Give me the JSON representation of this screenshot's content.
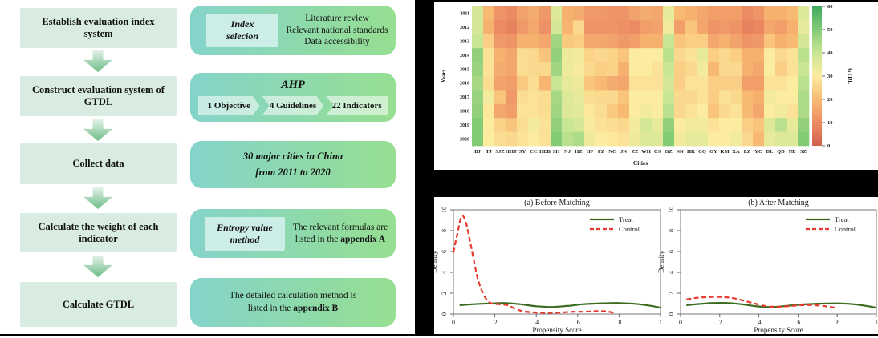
{
  "colors": {
    "flow_left_bg": "#d9ece1",
    "flow_right_gradient": [
      "#85d4cb",
      "#96de90"
    ],
    "badge_bg": "#cdeee6",
    "arrow_gradient": [
      "#e2f1e8",
      "#6dbd86"
    ],
    "treat_line": "#3a6b1e",
    "control_line": "#e8392e"
  },
  "flowchart": {
    "steps": [
      {
        "label": "Establish evaluation index system",
        "badge_lines": [
          "Index",
          "selecion"
        ],
        "info_lines": [
          "Literature review",
          "Relevant national standards",
          "Data accessibility"
        ]
      },
      {
        "label": "Construct evaluation system of GTDL",
        "title": "AHP",
        "chevrons": [
          "1 Objective",
          "4 Guidelines",
          "22 Indicators"
        ]
      },
      {
        "label": "Collect data",
        "info_lines": [
          "30 major cities in China",
          "from 2011 to 2020"
        ]
      },
      {
        "label": "Calculate the weight of each indicator",
        "badge_lines": [
          "Entropy value",
          "method"
        ],
        "line1": "The relevant formulas are",
        "line2_prefix": "listed in the ",
        "line2_bold": "appendix A"
      },
      {
        "label": "Calculate GTDL",
        "line1": "The detailed calculation method is",
        "line2_prefix": "listed in the ",
        "line2_bold": "appendix B"
      }
    ]
  },
  "chart_data": [
    {
      "type": "heatmap",
      "xlabel": "Cities",
      "ylabel": "Years",
      "colorbar_label": "GTDL",
      "colorbar_range": [
        0,
        60
      ],
      "colorbar_ticks": [
        0,
        10,
        20,
        30,
        40,
        50,
        60
      ],
      "colormap_stops": [
        [
          0,
          "#d4604e"
        ],
        [
          10,
          "#ec8b63"
        ],
        [
          20,
          "#f8ba72"
        ],
        [
          30,
          "#fceca0"
        ],
        [
          40,
          "#c9e694"
        ],
        [
          50,
          "#84cb76"
        ],
        [
          60,
          "#3fa95e"
        ]
      ],
      "x_categories": [
        "BJ",
        "TJ",
        "SJZ",
        "HHT",
        "SY",
        "CC",
        "HEB",
        "SH",
        "NJ",
        "HZ",
        "HF",
        "FZ",
        "NC",
        "JN",
        "ZZ",
        "WH",
        "CS",
        "GZ",
        "NN",
        "HK",
        "CQ",
        "GY",
        "KM",
        "XA",
        "LZ",
        "YC",
        "DL",
        "QD",
        "NB",
        "SZ"
      ],
      "y_categories": [
        "2011",
        "2012",
        "2013",
        "2014",
        "2015",
        "2016",
        "2017",
        "2018",
        "2019",
        "2020"
      ],
      "values": [
        [
          38,
          20,
          12,
          10,
          15,
          17,
          13,
          36,
          18,
          17,
          13,
          13,
          12,
          12,
          15,
          17,
          16,
          34,
          20,
          18,
          16,
          14,
          14,
          14,
          10,
          12,
          18,
          18,
          20,
          36
        ],
        [
          38,
          18,
          10,
          8,
          13,
          16,
          11,
          38,
          19,
          26,
          12,
          12,
          12,
          11,
          10,
          14,
          15,
          32,
          14,
          22,
          16,
          12,
          13,
          12,
          8,
          9,
          16,
          14,
          18,
          34
        ],
        [
          40,
          24,
          13,
          12,
          18,
          18,
          16,
          46,
          23,
          24,
          16,
          16,
          15,
          13,
          14,
          18,
          18,
          40,
          22,
          24,
          24,
          16,
          18,
          15,
          12,
          13,
          22,
          18,
          20,
          38
        ],
        [
          48,
          28,
          18,
          16,
          27,
          26,
          22,
          48,
          33,
          32,
          25,
          26,
          25,
          22,
          30,
          30,
          30,
          42,
          26,
          28,
          34,
          24,
          26,
          24,
          18,
          18,
          30,
          26,
          28,
          42
        ],
        [
          47,
          28,
          17,
          16,
          27,
          26,
          26,
          46,
          33,
          31,
          26,
          24,
          25,
          18,
          30,
          30,
          28,
          40,
          24,
          26,
          32,
          20,
          26,
          26,
          18,
          16,
          30,
          24,
          28,
          40
        ],
        [
          45,
          27,
          15,
          14,
          23,
          27,
          19,
          40,
          34,
          33,
          22,
          20,
          17,
          16,
          28,
          28,
          28,
          38,
          24,
          28,
          28,
          24,
          24,
          24,
          14,
          14,
          28,
          28,
          30,
          42
        ],
        [
          47,
          32,
          22,
          13,
          27,
          28,
          27,
          45,
          36,
          34,
          27,
          26,
          26,
          22,
          30,
          30,
          30,
          40,
          26,
          26,
          28,
          24,
          28,
          26,
          20,
          18,
          32,
          30,
          30,
          44
        ],
        [
          48,
          29,
          16,
          14,
          28,
          28,
          27,
          46,
          36,
          35,
          29,
          27,
          23,
          20,
          30,
          32,
          30,
          42,
          26,
          28,
          30,
          22,
          26,
          28,
          20,
          16,
          30,
          32,
          28,
          44
        ],
        [
          50,
          30,
          25,
          22,
          27,
          32,
          28,
          48,
          40,
          38,
          31,
          28,
          27,
          26,
          32,
          38,
          34,
          48,
          30,
          32,
          32,
          28,
          30,
          30,
          24,
          22,
          36,
          42,
          34,
          48
        ],
        [
          50,
          30,
          27,
          26,
          28,
          30,
          28,
          50,
          42,
          44,
          33,
          30,
          29,
          28,
          33,
          36,
          36,
          50,
          32,
          34,
          34,
          30,
          30,
          32,
          26,
          20,
          34,
          36,
          36,
          50
        ]
      ]
    },
    {
      "type": "line",
      "title": "(a) Before Matching",
      "xlabel": "Propensity Score",
      "ylabel": "Density",
      "xlim": [
        0,
        1
      ],
      "ylim": [
        0,
        10
      ],
      "xticks": [
        [
          0,
          "0"
        ],
        [
          0.2,
          ".2"
        ],
        [
          0.4,
          ".4"
        ],
        [
          0.6,
          ".6"
        ],
        [
          0.8,
          ".8"
        ],
        [
          1,
          "1"
        ]
      ],
      "yticks": [
        0,
        2,
        4,
        6,
        8,
        10
      ],
      "legend": [
        "Treat",
        "Control"
      ],
      "series": [
        {
          "name": "Treat",
          "style": "solid",
          "color": "#3a6b1e",
          "points": [
            [
              0.03,
              0.85
            ],
            [
              0.1,
              0.95
            ],
            [
              0.18,
              1.02
            ],
            [
              0.25,
              1.05
            ],
            [
              0.32,
              0.95
            ],
            [
              0.4,
              0.75
            ],
            [
              0.47,
              0.68
            ],
            [
              0.55,
              0.78
            ],
            [
              0.63,
              0.95
            ],
            [
              0.72,
              1.03
            ],
            [
              0.8,
              1.05
            ],
            [
              0.88,
              0.98
            ],
            [
              0.95,
              0.8
            ],
            [
              1.0,
              0.6
            ]
          ]
        },
        {
          "name": "Control",
          "style": "dashed",
          "color": "#e8392e",
          "points": [
            [
              0.0,
              5.9
            ],
            [
              0.02,
              7.8
            ],
            [
              0.04,
              9.4
            ],
            [
              0.06,
              8.8
            ],
            [
              0.08,
              7.0
            ],
            [
              0.1,
              5.0
            ],
            [
              0.12,
              3.2
            ],
            [
              0.15,
              1.7
            ],
            [
              0.18,
              1.05
            ],
            [
              0.22,
              0.95
            ],
            [
              0.26,
              0.85
            ],
            [
              0.3,
              0.5
            ],
            [
              0.34,
              0.25
            ],
            [
              0.4,
              0.15
            ],
            [
              0.46,
              0.12
            ],
            [
              0.52,
              0.15
            ],
            [
              0.58,
              0.22
            ],
            [
              0.64,
              0.22
            ],
            [
              0.7,
              0.28
            ],
            [
              0.74,
              0.25
            ],
            [
              0.78,
              0.1
            ]
          ]
        }
      ]
    },
    {
      "type": "line",
      "title": "(b) After Matching",
      "xlabel": "Propensity Score",
      "ylabel": "Density",
      "xlim": [
        0,
        1
      ],
      "ylim": [
        0,
        10
      ],
      "xticks": [
        [
          0,
          "0"
        ],
        [
          0.2,
          ".2"
        ],
        [
          0.4,
          ".4"
        ],
        [
          0.6,
          ".6"
        ],
        [
          0.8,
          ".8"
        ],
        [
          1,
          "1"
        ]
      ],
      "yticks": [
        0,
        2,
        4,
        6,
        8,
        10
      ],
      "legend": [
        "Treat",
        "Control"
      ],
      "series": [
        {
          "name": "Treat",
          "style": "solid",
          "color": "#3a6b1e",
          "points": [
            [
              0.03,
              0.85
            ],
            [
              0.1,
              0.97
            ],
            [
              0.18,
              1.06
            ],
            [
              0.25,
              1.05
            ],
            [
              0.32,
              0.92
            ],
            [
              0.4,
              0.72
            ],
            [
              0.47,
              0.67
            ],
            [
              0.55,
              0.8
            ],
            [
              0.63,
              0.93
            ],
            [
              0.72,
              1.0
            ],
            [
              0.8,
              1.02
            ],
            [
              0.88,
              0.95
            ],
            [
              0.95,
              0.78
            ],
            [
              1.0,
              0.6
            ]
          ]
        },
        {
          "name": "Control",
          "style": "dashed",
          "color": "#e8392e",
          "points": [
            [
              0.03,
              1.4
            ],
            [
              0.08,
              1.55
            ],
            [
              0.14,
              1.63
            ],
            [
              0.2,
              1.65
            ],
            [
              0.26,
              1.55
            ],
            [
              0.32,
              1.3
            ],
            [
              0.38,
              1.0
            ],
            [
              0.44,
              0.75
            ],
            [
              0.5,
              0.7
            ],
            [
              0.56,
              0.78
            ],
            [
              0.62,
              0.85
            ],
            [
              0.68,
              0.85
            ],
            [
              0.74,
              0.75
            ],
            [
              0.79,
              0.6
            ]
          ]
        }
      ]
    }
  ]
}
